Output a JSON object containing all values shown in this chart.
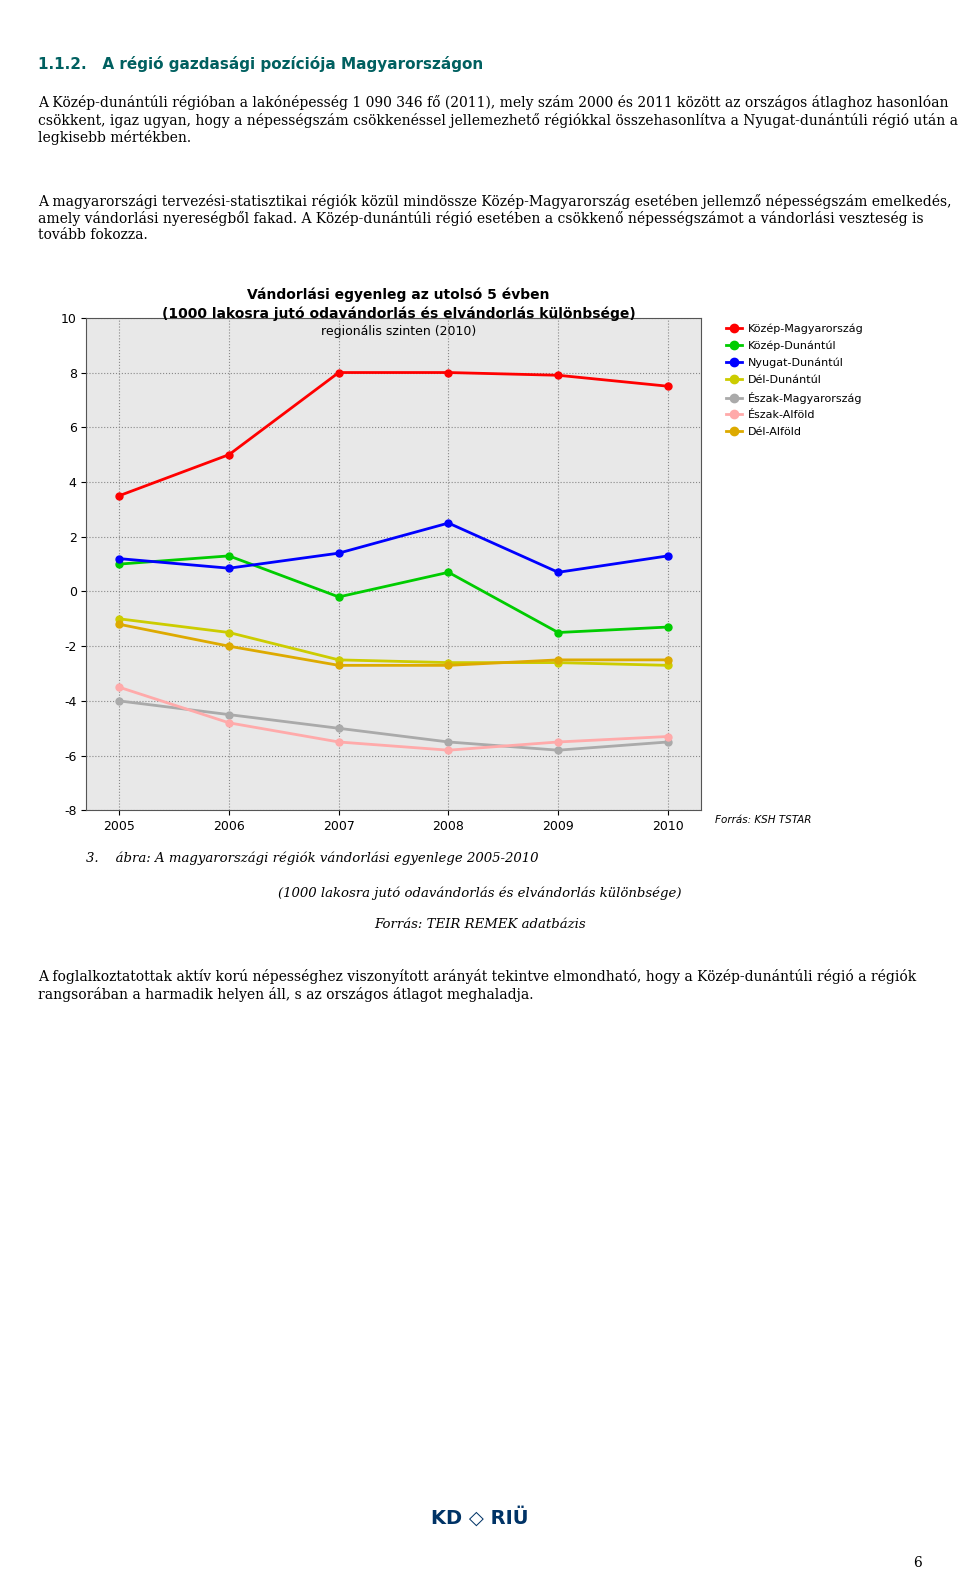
{
  "title_line1": "Vándorlási egyenleg az utolsó 5 évben",
  "title_line2": "(1000 lakosra jutó odavándorlás és elvándorlás különbsége)",
  "subtitle": "regionális szinten (2010)",
  "source": "Forrás: KSH TSTAR",
  "years": [
    2005,
    2006,
    2007,
    2008,
    2009,
    2010
  ],
  "series": [
    {
      "name": "Közép-Magyarország",
      "color": "#ff0000",
      "values": [
        3.5,
        5.0,
        8.0,
        8.0,
        7.9,
        7.5
      ]
    },
    {
      "name": "Közép-Dunántúl",
      "color": "#00cc00",
      "values": [
        1.0,
        1.3,
        -0.2,
        0.7,
        -1.5,
        -1.3
      ]
    },
    {
      "name": "Nyugat-Dunántúl",
      "color": "#0000ff",
      "values": [
        1.2,
        0.85,
        1.4,
        2.5,
        0.7,
        1.3
      ]
    },
    {
      "name": "Dél-Dunántúl",
      "color": "#cccc00",
      "values": [
        -1.0,
        -1.5,
        -2.5,
        -2.6,
        -2.6,
        -2.7
      ]
    },
    {
      "name": "Észak-Magyarország",
      "color": "#aaaaaa",
      "values": [
        -4.0,
        -4.5,
        -5.0,
        -5.5,
        -5.8,
        -5.5
      ]
    },
    {
      "name": "Észak-Alföld",
      "color": "#ffaaaa",
      "values": [
        -3.5,
        -4.8,
        -5.5,
        -5.8,
        -5.5,
        -5.3
      ]
    },
    {
      "name": "Dél-Alföld",
      "color": "#ddaa00",
      "values": [
        -1.2,
        -2.0,
        -2.7,
        -2.7,
        -2.5,
        -2.5
      ]
    }
  ],
  "ylim": [
    -8,
    10
  ],
  "yticks": [
    -8,
    -6,
    -4,
    -2,
    0,
    2,
    4,
    6,
    8,
    10
  ],
  "bg_color": "#e8e8e8",
  "top_heading": "1.1.2.   A régió gazdasági pozíciója Magyarországon",
  "top_para1": "A Közép-dunántúli régióban a lakónépesség 1 090 346 fő (2011), mely szám 2000 és 2011 között az országos átlaghoz hasonlóan csökkent, igaz ugyan, hogy a népességszám csökkenéssel jellemezhető régiókkal összehasonlítva a Nyugat-dunántúli régió után a legkisebb mértékben.",
  "top_para2": "A magyarországi tervezési-statisztikai régiók közül mindössze Közép-Magyarország esetében jellemző népességszám emelkedés, amely vándorlási nyereségből fakad. A Közép-dunántúli régió esetében a csökkenő népességszámot a vándorlási veszteség is tovább fokozza.",
  "caption_line1": "3.    ábra: A magyarországi régiók vándorlási egyenlege 2005-2010",
  "caption_line2": "(1000 lakosra jutó odavándorlás és elvándorlás különbsége)",
  "caption_line3": "Forrás: TEIR REMEK adatbázis",
  "bottom_text": "A foglalkoztatottak aktív korú népességhez viszonyított arányát tekintve elmondható, hogy a Közép-dunántúli régió a régiók rangsorában a harmadik helyen áll, s az országos átlagot meghaladja.",
  "page_number": "6"
}
